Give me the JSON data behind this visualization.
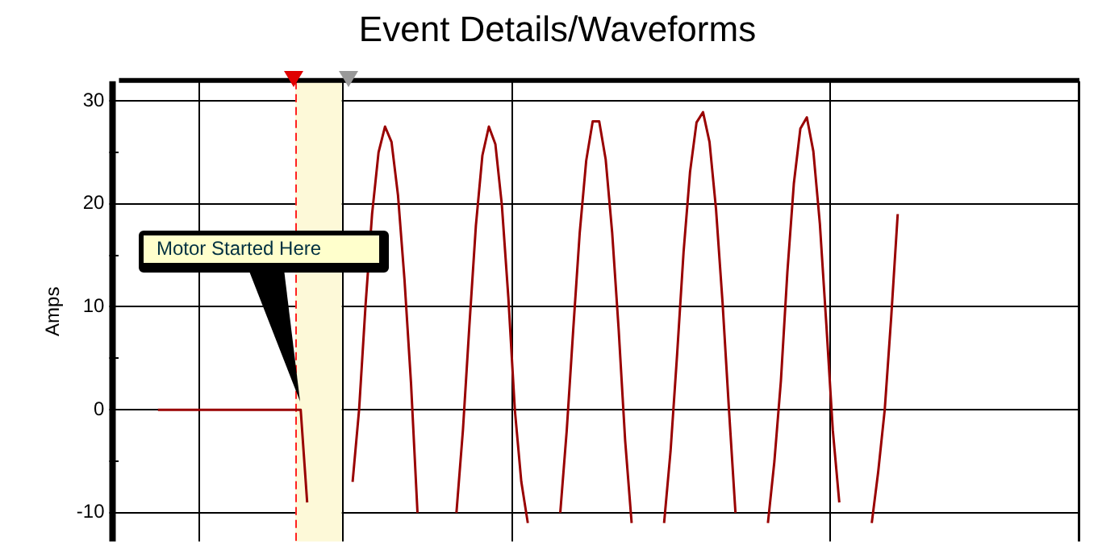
{
  "chart_data": {
    "type": "line",
    "title": "Event Details/Waveforms",
    "ylabel": "Amps",
    "categories": [
      null,
      null,
      null,
      null,
      null,
      null,
      null,
      null,
      null,
      null,
      null,
      null,
      null,
      null,
      null,
      null,
      null,
      null,
      null,
      null,
      null,
      null,
      null,
      null,
      null,
      null,
      null,
      null,
      null,
      null,
      null,
      null,
      null,
      null,
      null,
      null,
      null,
      null,
      null,
      null,
      null,
      null,
      null,
      null,
      null,
      null,
      null,
      null,
      null,
      null,
      null,
      null,
      null,
      null,
      null,
      null,
      null,
      null,
      null,
      null,
      null,
      null,
      null,
      null,
      null,
      null,
      null,
      null,
      null,
      null,
      null,
      null,
      null,
      null,
      null,
      null,
      null,
      null,
      null,
      null,
      null,
      null,
      null,
      null,
      null,
      null,
      null,
      null,
      null,
      null,
      null,
      null,
      null,
      null,
      null,
      null,
      null,
      null,
      null,
      null,
      null,
      null,
      null,
      null,
      null,
      null,
      null,
      null,
      null,
      null,
      null,
      null,
      null,
      null,
      null,
      null,
      null,
      null,
      null,
      null,
      null,
      null,
      null,
      null,
      null,
      null,
      null,
      null,
      null,
      null,
      null,
      null,
      null,
      null,
      null,
      null,
      null,
      null,
      null,
      null,
      null,
      null,
      null,
      null,
      null,
      null,
      null,
      null,
      null
    ],
    "series": [
      {
        "color": "#990000",
        "values": [
          null,
          null,
          null,
          null,
          null,
          null,
          0,
          0,
          0,
          0,
          0,
          0,
          0,
          0,
          0,
          0,
          0,
          0,
          0,
          0,
          0,
          0,
          0,
          0,
          0,
          0,
          0,
          0,
          0,
          -9,
          null,
          null,
          null,
          null,
          null,
          null,
          -7,
          0,
          10.2,
          19,
          25,
          27.5,
          26,
          20.8,
          12.6,
          2.6,
          -10,
          null,
          null,
          null,
          null,
          null,
          -10,
          -2,
          8.2,
          17.9,
          24.7,
          27.5,
          25.8,
          19.9,
          10.9,
          0,
          -7,
          -11,
          null,
          null,
          null,
          null,
          -10,
          -2,
          7.8,
          17.2,
          24.2,
          28,
          28,
          24.3,
          17.2,
          7.8,
          -3,
          -11,
          null,
          null,
          null,
          null,
          -11,
          -4,
          5.3,
          15.3,
          23.1,
          27.9,
          28.9,
          26,
          19.5,
          10.5,
          0,
          -10,
          null,
          null,
          null,
          null,
          -11,
          -5,
          2.8,
          13.4,
          22,
          27.3,
          28.4,
          25.1,
          18.1,
          8.3,
          -2,
          -9,
          null,
          null,
          null,
          null,
          -11,
          -6,
          0,
          9,
          19,
          null,
          null,
          null,
          null,
          null,
          null,
          null,
          null,
          null,
          null,
          null,
          null,
          null,
          null,
          null,
          null,
          null,
          null,
          null,
          null,
          null,
          null,
          null,
          null,
          null,
          null,
          null,
          null
        ]
      }
    ],
    "ylim": [
      -12.8,
      31.9
    ],
    "yticks": [
      -10,
      {
        "value": -5,
        "label": null
      },
      0,
      {
        "value": 5,
        "label": null
      },
      10,
      {
        "value": 15,
        "label": null
      },
      20,
      {
        "value": 25,
        "label": null
      },
      30
    ],
    "grid": true,
    "legend": false,
    "tick_labels": "y",
    "marker": "none",
    "line_style": "solid",
    "annotations": [
      "Motor Started Here"
    ]
  }
}
